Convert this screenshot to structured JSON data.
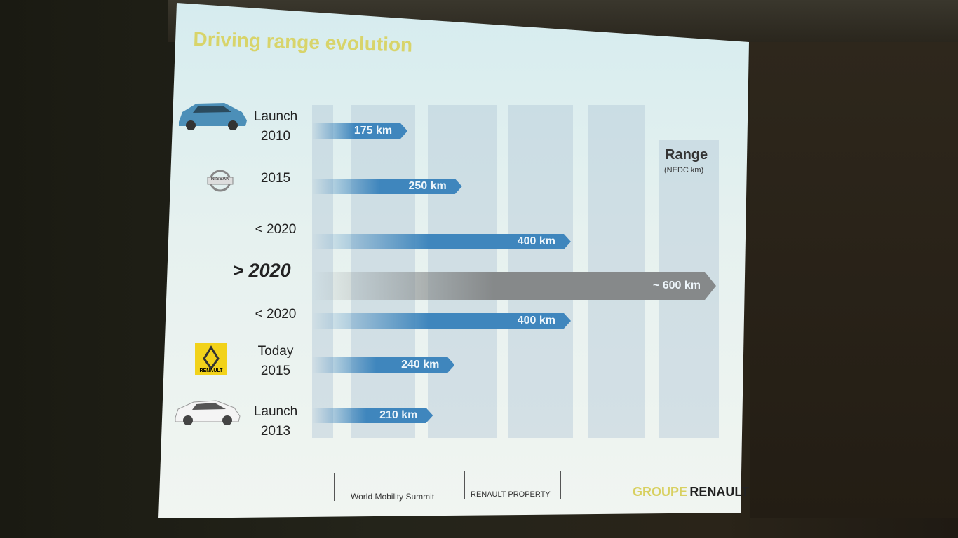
{
  "chart_data": {
    "type": "bar",
    "orientation": "horizontal",
    "title": "Driving range evolution",
    "value_axis_title": "Range",
    "value_axis_subtitle": "(NEDC km)",
    "categories": [
      "Launch 2010",
      "2015",
      "< 2020",
      "> 2020",
      "< 2020",
      "Today 2015",
      "Launch 2013"
    ],
    "values": [
      175,
      250,
      400,
      600,
      400,
      240,
      210
    ],
    "value_labels": [
      "175 km",
      "250 km",
      "400 km",
      "~ 600 km",
      "400 km",
      "240 km",
      "210 km"
    ],
    "colors": [
      "#3f86bd",
      "#3f86bd",
      "#3f86bd",
      "#86898a",
      "#3f86bd",
      "#3f86bd",
      "#3f86bd"
    ]
  },
  "logos": {
    "nissan": "NISSAN",
    "renault": "RENAULT"
  },
  "footer": {
    "event": "World Mobility Summit",
    "property": "RENAULT PROPERTY",
    "brand_prefix": "GROUPE",
    "brand": "RENAULT"
  }
}
